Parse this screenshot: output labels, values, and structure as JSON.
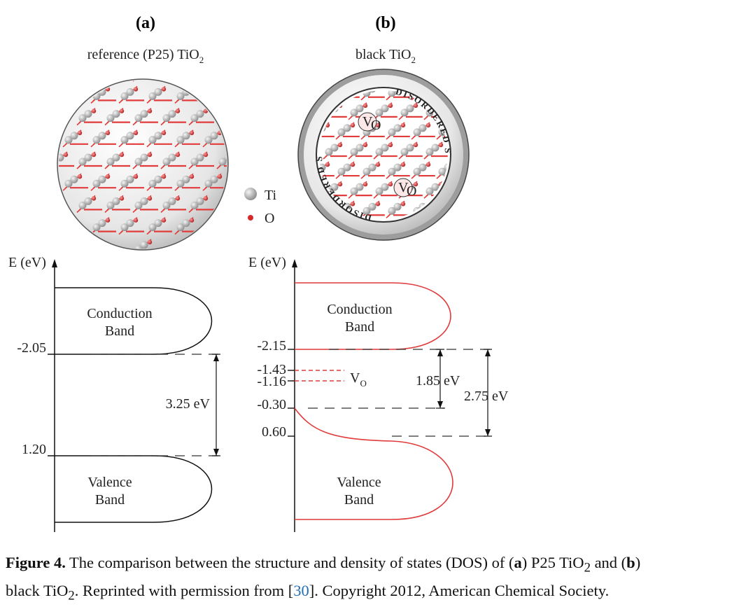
{
  "panels": {
    "a": {
      "label": "(a)",
      "title_main": "reference (P25) TiO",
      "title_sub": "2",
      "axis_label": "E (eV)",
      "band_edges": {
        "cb_min": -2.05,
        "vb_max": 1.2
      },
      "tick_labels": [
        "-2.05",
        "1.20"
      ],
      "conduction_band": [
        "Conduction",
        "Band"
      ],
      "valence_band": [
        "Valence",
        "Band"
      ],
      "gap_label": "3.25 eV",
      "line_color": "#111111"
    },
    "b": {
      "label": "(b)",
      "title_main": "black TiO",
      "title_sub": "2",
      "shell_label": "DISORDERED SHELL",
      "vacancy_label": "V",
      "vacancy_sub": "O",
      "axis_label": "E (eV)",
      "band_edges": {
        "cb_min": -2.15,
        "defect_1": -1.43,
        "defect_2": -1.16,
        "vb_tail": -0.3,
        "vb_max": 0.6
      },
      "tick_labels": [
        "-2.15",
        "-1.43",
        "-1.16",
        "-0.30",
        "0.60"
      ],
      "conduction_band": [
        "Conduction",
        "Band"
      ],
      "valence_band": [
        "Valence",
        "Band"
      ],
      "defect_label": "V",
      "defect_sub": "O",
      "gap_small": "1.85 eV",
      "gap_large": "2.75 eV",
      "line_color": "#e03a3a"
    }
  },
  "legend": {
    "ti": "Ti",
    "o": "O",
    "ti_color": "#c8c8c8",
    "o_color": "#d42a2a"
  },
  "colors": {
    "ti_atom": "#9a9a9a",
    "o_atom": "#d42a2a",
    "bond": "#e23b3b",
    "band_red": "#e03a3a"
  },
  "caption": {
    "figure": "Figure 4.",
    "text_1": " The comparison between the structure and density of states (DOS) of (",
    "a": "a",
    "text_2": ") P25 TiO",
    "sub_2a": "2",
    "text_3": " and (",
    "b": "b",
    "text_4": ")",
    "text_5": "black TiO",
    "sub_2b": "2",
    "text_6": ". Reprinted with permission from [",
    "ref": "30",
    "text_7": "]. Copyright 2012, American Chemical Society."
  }
}
